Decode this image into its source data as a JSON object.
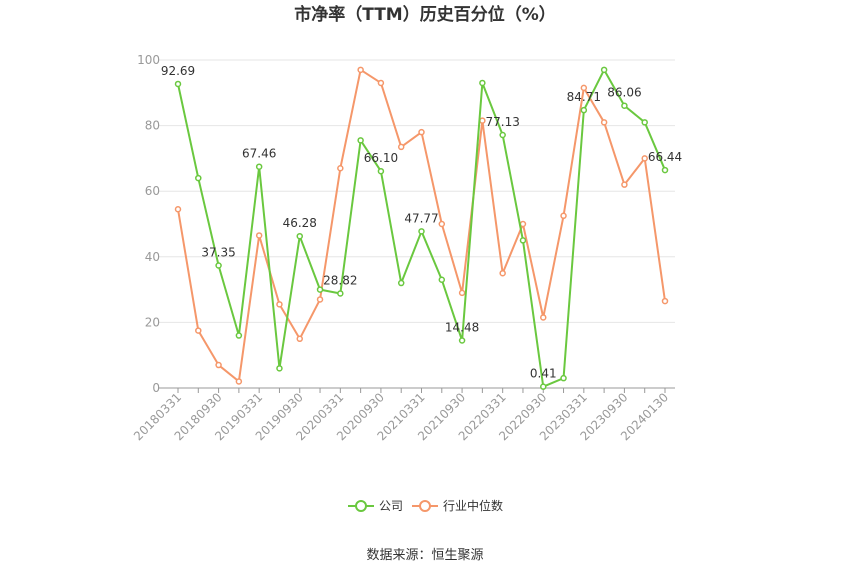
{
  "chart_data": {
    "type": "line",
    "title": "市净率（TTM）历史百分位（%）",
    "x": [
      "20180331",
      "20180630",
      "20180930",
      "20181231",
      "20190331",
      "20190630",
      "20190930",
      "20191231",
      "20200331",
      "20200630",
      "20200930",
      "20201231",
      "20210331",
      "20210630",
      "20210930",
      "20211231",
      "20220331",
      "20220630",
      "20220930",
      "20221231",
      "20230331",
      "20230630",
      "20230930",
      "20231231",
      "20240130"
    ],
    "x_tick_labels": [
      "20180331",
      "20180930",
      "20190331",
      "20190930",
      "20200331",
      "20200930",
      "20210331",
      "20210930",
      "20220331",
      "20220930",
      "20230331",
      "20230930",
      "20240130"
    ],
    "ylim": [
      0,
      100
    ],
    "y_ticks": [
      "0",
      "20",
      "40",
      "60",
      "80",
      "100"
    ],
    "grid": true,
    "legend_position": "bottom",
    "series": [
      {
        "name": "公司",
        "color": "#6ac83f",
        "values": [
          92.69,
          64,
          37.35,
          16,
          67.46,
          6,
          46.28,
          30,
          28.82,
          75.5,
          66.1,
          32,
          47.77,
          33,
          14.48,
          93,
          77.13,
          45,
          0.41,
          3,
          84.71,
          97,
          86.06,
          81,
          66.44
        ]
      },
      {
        "name": "行业中位数",
        "color": "#f5976a",
        "values": [
          54.5,
          17.5,
          7,
          2,
          46.5,
          25.5,
          15,
          27,
          67,
          97,
          93,
          73.5,
          78,
          50,
          29,
          81.5,
          35,
          50,
          21.5,
          52.5,
          91.5,
          81,
          62,
          70,
          26.5
        ]
      }
    ],
    "data_labels": [
      {
        "series": 0,
        "index": 0,
        "text": "92.69"
      },
      {
        "series": 0,
        "index": 2,
        "text": "37.35"
      },
      {
        "series": 0,
        "index": 4,
        "text": "67.46"
      },
      {
        "series": 0,
        "index": 6,
        "text": "46.28"
      },
      {
        "series": 0,
        "index": 8,
        "text": "28.82"
      },
      {
        "series": 0,
        "index": 10,
        "text": "66.10"
      },
      {
        "series": 0,
        "index": 12,
        "text": "47.77"
      },
      {
        "series": 0,
        "index": 14,
        "text": "14.48"
      },
      {
        "series": 0,
        "index": 16,
        "text": "77.13"
      },
      {
        "series": 0,
        "index": 18,
        "text": "0.41"
      },
      {
        "series": 0,
        "index": 20,
        "text": "84.71"
      },
      {
        "series": 0,
        "index": 22,
        "text": "86.06"
      },
      {
        "series": 0,
        "index": 24,
        "text": "66.44"
      }
    ]
  },
  "legend": [
    {
      "label": "公司",
      "color": "#6ac83f"
    },
    {
      "label": "行业中位数",
      "color": "#f5976a"
    }
  ],
  "source": "数据来源：恒生聚源"
}
